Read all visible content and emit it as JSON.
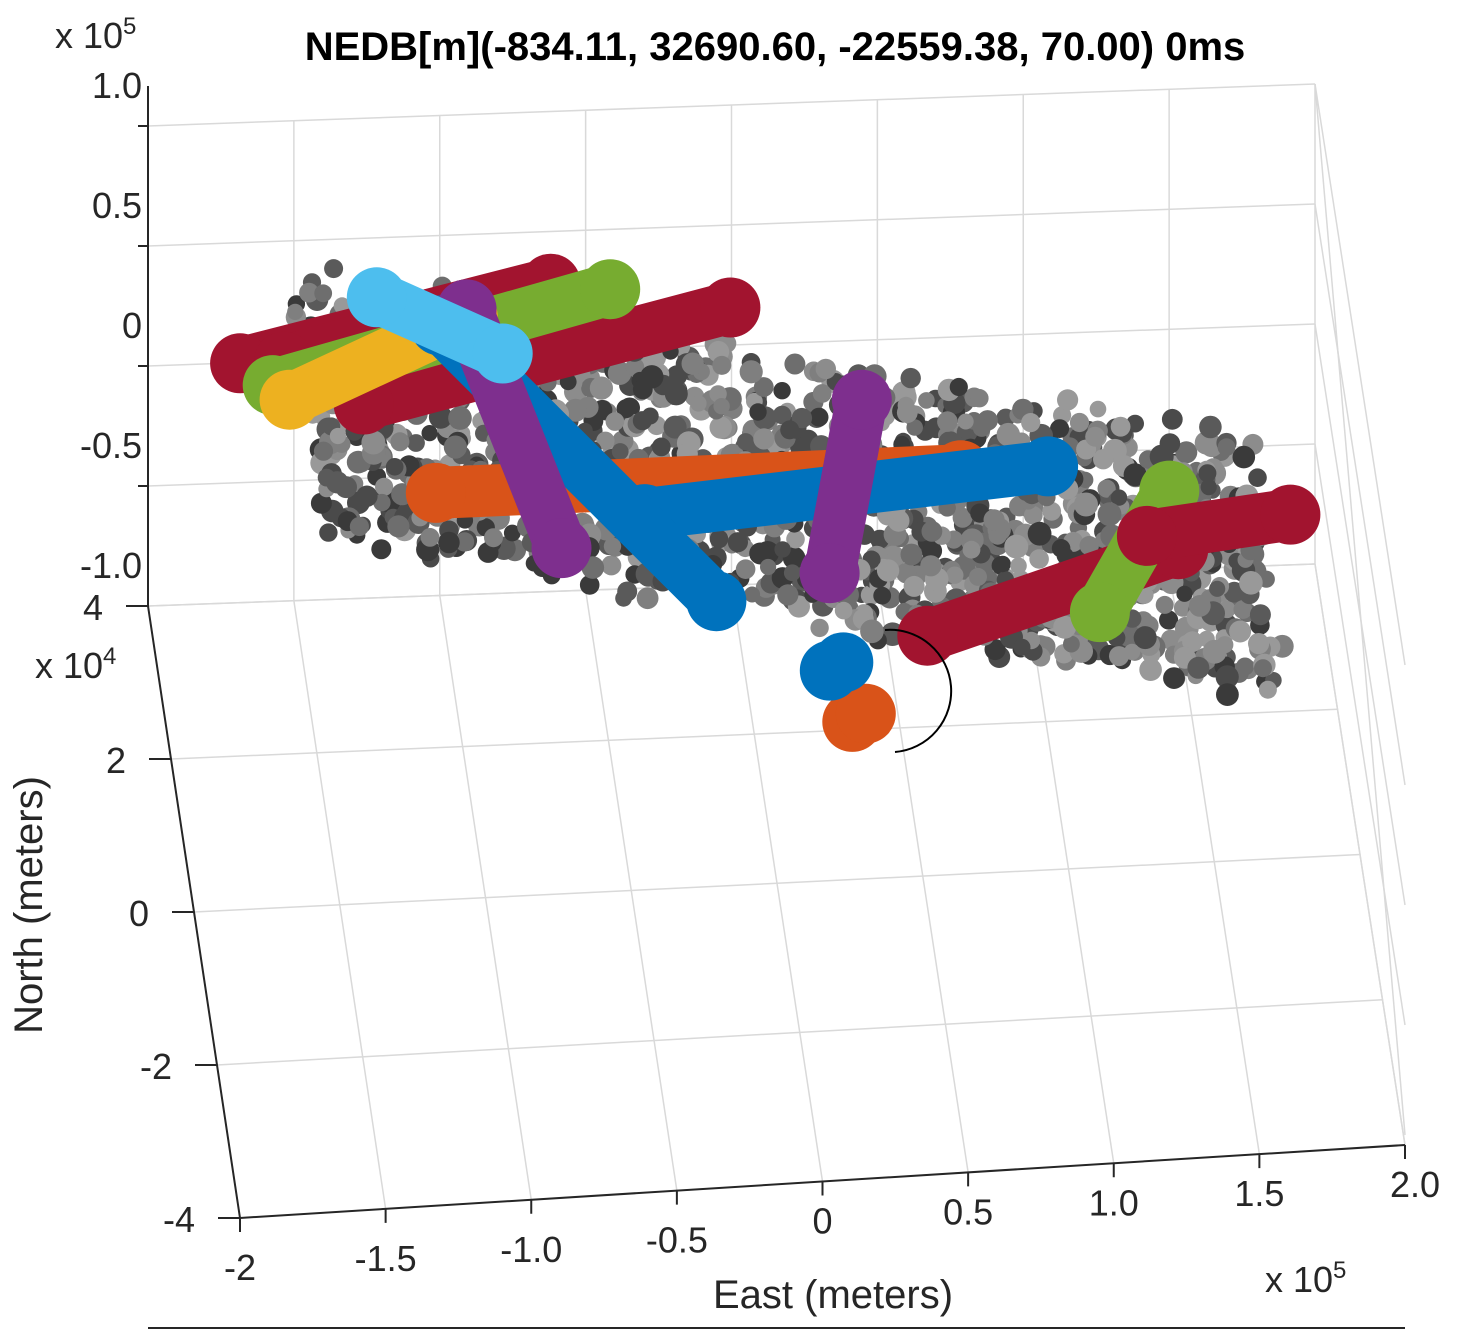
{
  "chart_data": {
    "type": "scatter",
    "title": "NEDB[m](-834.11, 32690.60, -22559.38, 70.00) 0ms",
    "xlabel": "East (meters)",
    "ylabel": "North (meters)",
    "zlabel": "",
    "x_ticks": [
      "-2",
      "-1.5",
      "-1.0",
      "-0.5",
      "0",
      "0.5",
      "1.0",
      "1.5",
      "2.0"
    ],
    "x_exponent": "x 10",
    "x_exponent_power": "5",
    "y_ticks": [
      "-4",
      "-2",
      "0",
      "2",
      "4"
    ],
    "y_exponent": "x 10",
    "y_exponent_power": "4",
    "z_ticks": [
      "-1.0",
      "-0.5",
      "0",
      "0.5",
      "1.0"
    ],
    "z_exponent": "x 10",
    "z_exponent_power": "5",
    "xlim": [
      -200000,
      200000
    ],
    "ylim": [
      -40000,
      40000
    ],
    "zlim": [
      -100000,
      100000
    ],
    "grid": true,
    "view": "3d",
    "series": [
      {
        "color": "#a2142f",
        "start": [
          -170000,
          36000
        ],
        "end": [
          -60000,
          45000
        ]
      },
      {
        "color": "#a2142f",
        "start": [
          -130000,
          30000
        ],
        "end": [
          0,
          41000
        ]
      },
      {
        "color": "#a2142f",
        "start": [
          -155000,
          36000
        ],
        "end": [
          -90000,
          42000
        ]
      },
      {
        "color": "#77ac30",
        "start": [
          -160000,
          33000
        ],
        "end": [
          -40000,
          44000
        ]
      },
      {
        "color": "#edb120",
        "start": [
          -155000,
          31000
        ],
        "end": [
          -90000,
          41000
        ]
      },
      {
        "color": "#d95319",
        "start": [
          -110000,
          18000
        ],
        "end": [
          70000,
          18000
        ]
      },
      {
        "color": "#0072bd",
        "start": [
          -40000,
          14000
        ],
        "end": [
          100000,
          18000
        ]
      },
      {
        "color": "#0072bd",
        "start": [
          -100000,
          40000
        ],
        "end": [
          -20000,
          2000
        ]
      },
      {
        "color": "#7e2f8e",
        "start": [
          -90000,
          42000
        ],
        "end": [
          -70000,
          10000
        ]
      },
      {
        "color": "#7e2f8e",
        "start": [
          40000,
          28000
        ],
        "end": [
          20000,
          5000
        ]
      },
      {
        "color": "#a2142f",
        "start": [
          50000,
          -4000
        ],
        "end": [
          140000,
          6000
        ]
      },
      {
        "color": "#77ac30",
        "start": [
          140000,
          14000
        ],
        "end": [
          110000,
          -2000
        ]
      },
      {
        "color": "#a2142f",
        "start": [
          130000,
          8000
        ],
        "end": [
          180000,
          10000
        ]
      },
      {
        "color": "#4dbeee",
        "start": [
          -120000,
          44000
        ],
        "end": [
          -80000,
          36000
        ]
      },
      {
        "color": "#d95319",
        "start": [
          20000,
          -15000
        ],
        "end": [
          25000,
          -14000
        ]
      },
      {
        "color": "#0072bd",
        "start": [
          15000,
          -8000
        ],
        "end": [
          20000,
          -7000
        ]
      }
    ],
    "background_points": "gray"
  }
}
